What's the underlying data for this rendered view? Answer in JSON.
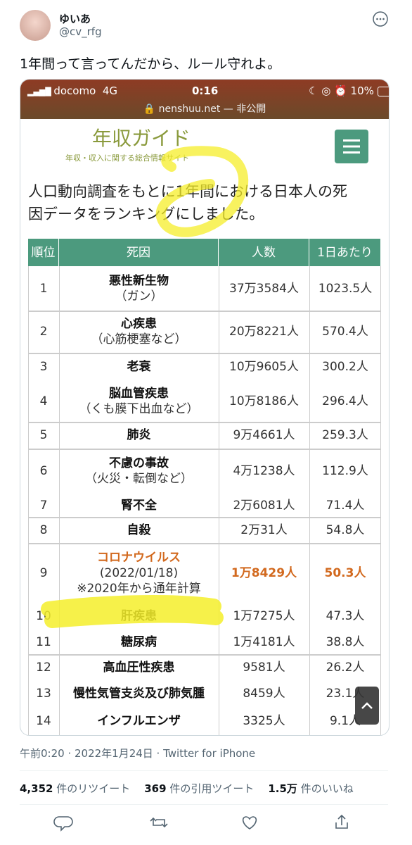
{
  "tweet": {
    "author": {
      "name": "ゆいあ",
      "handle": "@cv_rfg"
    },
    "text": "1年間って言ってんだから、ルール守れよ。",
    "image": {
      "status_bar": {
        "carrier": "docomo",
        "network": "4G",
        "time": "0:16",
        "battery": "10%"
      },
      "url": "nenshuu.net — 非公開",
      "site": {
        "logo": "年収ガイド",
        "tagline": "年収・収入に関する総合情報サイト"
      },
      "heading": [
        "人口動向調査をもとに1年間における日本人の死",
        "因データをランキングにしました。"
      ],
      "table": {
        "headers": [
          "順位",
          "死因",
          "人数",
          "1日あたり"
        ],
        "rows": [
          {
            "rank": "1",
            "cause": [
              "悪性新生物",
              "（ガン）"
            ],
            "count": "37万3584人",
            "per_day": "1023.5人"
          },
          {
            "rank": "2",
            "cause": [
              "心疾患",
              "（心筋梗塞など）"
            ],
            "count": "20万8221人",
            "per_day": "570.4人"
          },
          {
            "rank": "3",
            "cause": [
              "老衰"
            ],
            "count": "10万9605人",
            "per_day": "300.2人"
          },
          {
            "rank": "4",
            "cause": [
              "脳血管疾患",
              "（くも膜下出血など）"
            ],
            "count": "10万8186人",
            "per_day": "296.4人"
          },
          {
            "rank": "5",
            "cause": [
              "肺炎"
            ],
            "count": "9万4661人",
            "per_day": "259.3人"
          },
          {
            "rank": "6",
            "cause": [
              "不慮の事故",
              "（火災・転倒など）"
            ],
            "count": "4万1238人",
            "per_day": "112.9人"
          },
          {
            "rank": "7",
            "cause": [
              "腎不全"
            ],
            "count": "2万6081人",
            "per_day": "71.4人"
          },
          {
            "rank": "8",
            "cause": [
              "自殺"
            ],
            "count": "2万31人",
            "per_day": "54.8人"
          },
          {
            "rank": "9",
            "cause": [
              "コロナウイルス",
              "(2022/01/18)",
              "※2020年から通年計算"
            ],
            "count": "1万8429人",
            "per_day": "50.3人",
            "emphasis": true
          },
          {
            "rank": "10",
            "cause": [
              "肝疾患"
            ],
            "count": "1万7275人",
            "per_day": "47.3人"
          },
          {
            "rank": "11",
            "cause": [
              "糖尿病"
            ],
            "count": "1万4181人",
            "per_day": "38.8人"
          },
          {
            "rank": "12",
            "cause": [
              "高血圧性疾患"
            ],
            "count": "9581人",
            "per_day": "26.2人"
          },
          {
            "rank": "13",
            "cause": [
              "慢性気管支炎及び肺気腫"
            ],
            "count": "8459人",
            "per_day": "23.1人"
          },
          {
            "rank": "14",
            "cause": [
              "インフルエンザ"
            ],
            "count": "3325人",
            "per_day": "9.1人"
          }
        ]
      }
    },
    "meta": "午前0:20 · 2022年1月24日 · Twitter for iPhone",
    "stats": [
      {
        "count": "4,352",
        "label": "件のリツイート"
      },
      {
        "count": "369",
        "label": "件の引用ツイート"
      },
      {
        "count": "1.5万",
        "label": "件のいいね"
      }
    ]
  }
}
